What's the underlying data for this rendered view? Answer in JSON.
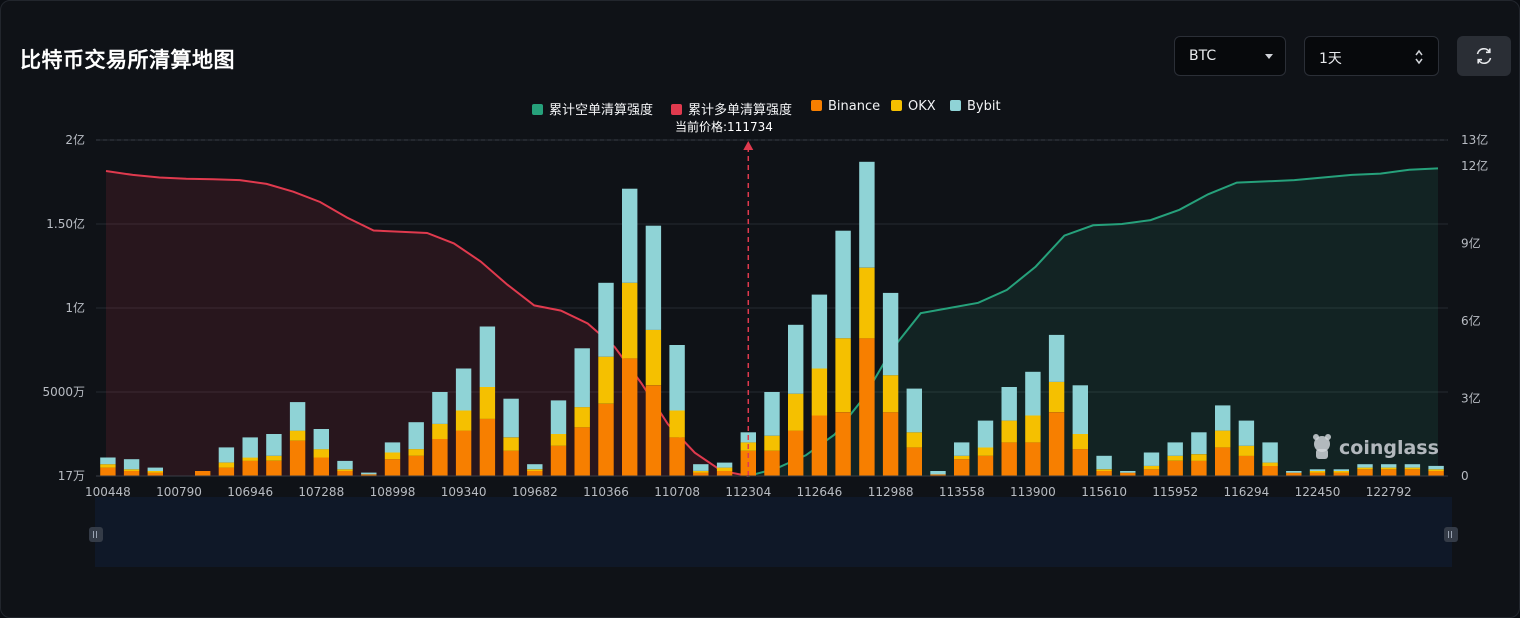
{
  "header": {
    "title": "比特币交易所清算地图",
    "coin_select": "BTC",
    "period_select": "1天"
  },
  "colors": {
    "short_cumulative": "#26a17b",
    "long_cumulative": "#e03a4e",
    "binance": "#f77f00",
    "okx": "#f5c000",
    "bybit": "#8fd3d6"
  },
  "icons": [
    "chevron-down-icon",
    "up-down-arrows-icon",
    "refresh-icon",
    "coinglass-logo-icon"
  ],
  "watermark": "coinglass",
  "legend": {
    "short": "累计空单清算强度",
    "long": "累计多单清算强度",
    "binance": "Binance",
    "okx": "OKX",
    "bybit": "Bybit"
  },
  "current_price_label": "当前价格:111734",
  "chart_data": {
    "type": "bar",
    "x_tick_labels": [
      "100448",
      "100790",
      "106946",
      "107288",
      "108998",
      "109340",
      "109682",
      "110366",
      "110708",
      "112304",
      "112646",
      "112988",
      "113558",
      "113900",
      "115610",
      "115952",
      "116294",
      "122450",
      "122792"
    ],
    "y_left_ticks": [
      "17万",
      "5000万",
      "1亿",
      "1.50亿",
      "2亿"
    ],
    "y_right_ticks": [
      "0",
      "3亿",
      "6亿",
      "9亿",
      "12亿",
      "13亿"
    ],
    "left_axis_unit": "亿",
    "right_axis_unit": "亿",
    "ylim_left": [
      0,
      2
    ],
    "ylim_right": [
      0,
      13
    ],
    "current_price": 111734,
    "bar_count": 57,
    "current_price_bar_index": 27.5,
    "bar_series": [
      {
        "name": "Binance",
        "values": [
          0.05,
          0.03,
          0.02,
          0.0,
          0.03,
          0.05,
          0.09,
          0.09,
          0.21,
          0.11,
          0.03,
          0.01,
          0.1,
          0.12,
          0.22,
          0.27,
          0.34,
          0.15,
          0.03,
          0.18,
          0.29,
          0.43,
          0.7,
          0.54,
          0.23,
          0.02,
          0.03,
          0.15,
          0.15,
          0.27,
          0.36,
          0.38,
          0.82,
          0.38,
          0.17,
          0.01,
          0.1,
          0.12,
          0.2,
          0.2,
          0.38,
          0.16,
          0.03,
          0.02,
          0.04,
          0.09,
          0.09,
          0.17,
          0.12,
          0.06,
          0.02,
          0.02,
          0.02,
          0.04,
          0.04,
          0.04,
          0.03
        ]
      },
      {
        "name": "OKX",
        "values": [
          0.02,
          0.01,
          0.01,
          0.0,
          0.0,
          0.03,
          0.02,
          0.03,
          0.06,
          0.05,
          0.01,
          0.0,
          0.04,
          0.04,
          0.09,
          0.12,
          0.19,
          0.08,
          0.01,
          0.07,
          0.12,
          0.28,
          0.45,
          0.33,
          0.16,
          0.01,
          0.02,
          0.05,
          0.09,
          0.22,
          0.28,
          0.44,
          0.42,
          0.22,
          0.09,
          0.0,
          0.02,
          0.05,
          0.13,
          0.16,
          0.18,
          0.09,
          0.01,
          0.0,
          0.02,
          0.03,
          0.04,
          0.1,
          0.06,
          0.02,
          0.0,
          0.01,
          0.01,
          0.01,
          0.01,
          0.01,
          0.01
        ]
      },
      {
        "name": "Bybit",
        "values": [
          0.04,
          0.06,
          0.02,
          0.0,
          0.0,
          0.09,
          0.12,
          0.13,
          0.17,
          0.12,
          0.05,
          0.01,
          0.06,
          0.16,
          0.19,
          0.25,
          0.36,
          0.23,
          0.03,
          0.2,
          0.35,
          0.44,
          0.56,
          0.62,
          0.39,
          0.04,
          0.03,
          0.06,
          0.26,
          0.41,
          0.44,
          0.64,
          0.63,
          0.49,
          0.26,
          0.02,
          0.08,
          0.16,
          0.2,
          0.26,
          0.28,
          0.29,
          0.08,
          0.01,
          0.08,
          0.08,
          0.13,
          0.15,
          0.15,
          0.12,
          0.01,
          0.01,
          0.01,
          0.02,
          0.02,
          0.02,
          0.02
        ]
      }
    ],
    "cumulative_series": [
      {
        "name": "累计多单清算强度",
        "axis": "right",
        "x_range": "100448-111734",
        "values": [
          11.8,
          11.65,
          11.55,
          11.5,
          11.48,
          11.45,
          11.3,
          11.0,
          10.6,
          10.0,
          9.5,
          9.45,
          9.4,
          9.0,
          8.3,
          7.4,
          6.6,
          6.4,
          5.9,
          5.0,
          3.6,
          2.0,
          0.9,
          0.2,
          0.0
        ]
      },
      {
        "name": "累计空单清算强度",
        "axis": "right",
        "x_range": "111734-122792",
        "values": [
          0.0,
          0.3,
          0.8,
          1.6,
          3.0,
          4.9,
          6.3,
          6.5,
          6.7,
          7.2,
          8.1,
          9.3,
          9.7,
          9.75,
          9.9,
          10.3,
          10.9,
          11.35,
          11.4,
          11.45,
          11.55,
          11.65,
          11.7,
          11.85,
          11.9
        ]
      }
    ]
  }
}
